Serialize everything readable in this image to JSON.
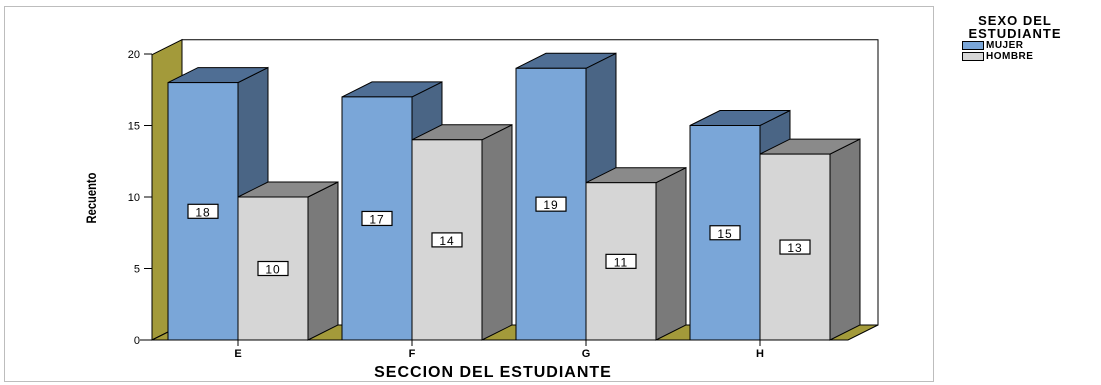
{
  "chart_data": {
    "type": "bar",
    "title": "",
    "xlabel": "SECCION DEL ESTUDIANTE",
    "ylabel": "Recuento",
    "ylim": [
      0,
      21
    ],
    "yticks": [
      0,
      5,
      10,
      15,
      20
    ],
    "categories": [
      "E",
      "F",
      "G",
      "H"
    ],
    "legend_title": "SEXO DEL ESTUDIANTE",
    "legend_position": "right",
    "grid": false,
    "series": [
      {
        "name": "MUJER",
        "values": [
          18,
          17,
          19,
          15
        ],
        "color": "#7aa6d8",
        "side_color": "#4a6585",
        "top_color": "#4f6e94"
      },
      {
        "name": "HOMBRE",
        "values": [
          10,
          14,
          11,
          13
        ],
        "color": "#d6d6d6",
        "side_color": "#7a7a7a",
        "top_color": "#8a8a8a"
      }
    ],
    "wall_color": "#a39a3a"
  }
}
